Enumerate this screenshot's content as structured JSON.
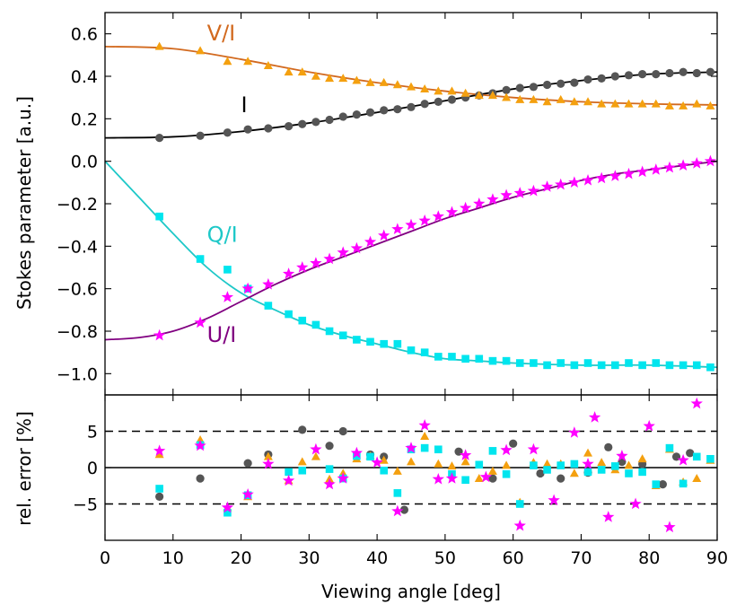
{
  "chart_data": [
    {
      "type": "scatter",
      "panel": "top",
      "title": "",
      "xlabel": "Viewing angle [deg]",
      "ylabel": "Stokes parameter [a.u.]",
      "xlim": [
        0,
        90
      ],
      "ylim": [
        -1.1,
        0.7
      ],
      "xticks": [
        0,
        10,
        20,
        30,
        40,
        50,
        60,
        70,
        80,
        90
      ],
      "yticks": [
        0.6,
        0.4,
        0.2,
        0.0,
        -0.2,
        -0.4,
        -0.6,
        -0.8,
        -1.0
      ],
      "ytick_labels": [
        "0.6",
        "0.4",
        "0.2",
        "0.0",
        "−0.2",
        "−0.4",
        "−0.6",
        "−0.8",
        "−1.0"
      ],
      "series": [
        {
          "name": "I",
          "label": "I",
          "color": "#000000",
          "marker_color": "#555555",
          "marker": "circle",
          "label_at": [
            20,
            0.23
          ],
          "curve": {
            "x": [
              0,
              10,
              20,
              30,
              40,
              50,
              60,
              70,
              80,
              90
            ],
            "y": [
              0.11,
              0.115,
              0.14,
              0.18,
              0.23,
              0.285,
              0.34,
              0.38,
              0.41,
              0.42
            ]
          },
          "x": [
            8,
            14,
            18,
            21,
            24,
            27,
            29,
            31,
            33,
            35,
            37,
            39,
            41,
            43,
            45,
            47,
            49,
            51,
            53,
            55,
            57,
            59,
            61,
            63,
            65,
            67,
            69,
            71,
            73,
            75,
            77,
            79,
            81,
            83,
            85,
            87,
            89
          ],
          "y": [
            0.11,
            0.12,
            0.135,
            0.15,
            0.155,
            0.165,
            0.175,
            0.185,
            0.195,
            0.21,
            0.22,
            0.23,
            0.24,
            0.245,
            0.255,
            0.27,
            0.28,
            0.29,
            0.3,
            0.31,
            0.32,
            0.335,
            0.345,
            0.35,
            0.36,
            0.365,
            0.37,
            0.385,
            0.39,
            0.4,
            0.405,
            0.41,
            0.41,
            0.415,
            0.42,
            0.415,
            0.42
          ]
        },
        {
          "name": "V/I",
          "label": "V/I",
          "color": "#d2691e",
          "marker_color": "#f4a00f",
          "marker": "triangle",
          "label_at": [
            15,
            0.57
          ],
          "curve": {
            "x": [
              0,
              10,
              20,
              30,
              40,
              50,
              60,
              70,
              80,
              90
            ],
            "y": [
              0.54,
              0.53,
              0.48,
              0.42,
              0.37,
              0.33,
              0.3,
              0.28,
              0.27,
              0.265
            ]
          },
          "x": [
            8,
            14,
            18,
            21,
            24,
            27,
            29,
            31,
            33,
            35,
            37,
            39,
            41,
            43,
            45,
            47,
            49,
            51,
            53,
            55,
            57,
            59,
            61,
            63,
            65,
            67,
            69,
            71,
            73,
            75,
            77,
            79,
            81,
            83,
            85,
            87,
            89
          ],
          "y": [
            0.54,
            0.52,
            0.47,
            0.47,
            0.45,
            0.42,
            0.42,
            0.4,
            0.39,
            0.39,
            0.38,
            0.37,
            0.37,
            0.36,
            0.35,
            0.34,
            0.33,
            0.33,
            0.32,
            0.31,
            0.31,
            0.3,
            0.29,
            0.29,
            0.28,
            0.29,
            0.28,
            0.28,
            0.27,
            0.27,
            0.27,
            0.27,
            0.27,
            0.26,
            0.26,
            0.27,
            0.26
          ]
        },
        {
          "name": "Q/I",
          "label": "Q/I",
          "color": "#1ec8c8",
          "marker_color": "#00e5ee",
          "marker": "square",
          "label_at": [
            15,
            -0.38
          ],
          "curve": {
            "x": [
              0,
              5,
              10,
              15,
              20,
              25,
              30,
              35,
              40,
              45,
              50,
              55,
              60,
              70,
              80,
              90
            ],
            "y": [
              0.0,
              -0.17,
              -0.34,
              -0.5,
              -0.62,
              -0.7,
              -0.77,
              -0.82,
              -0.86,
              -0.9,
              -0.93,
              -0.94,
              -0.95,
              -0.96,
              -0.96,
              -0.97
            ]
          },
          "x": [
            8,
            14,
            18,
            21,
            24,
            27,
            29,
            31,
            33,
            35,
            37,
            39,
            41,
            43,
            45,
            47,
            49,
            51,
            53,
            55,
            57,
            59,
            61,
            63,
            65,
            67,
            69,
            71,
            73,
            75,
            77,
            79,
            81,
            83,
            85,
            87,
            89
          ],
          "y": [
            -0.26,
            -0.46,
            -0.51,
            -0.6,
            -0.68,
            -0.72,
            -0.75,
            -0.77,
            -0.8,
            -0.82,
            -0.84,
            -0.85,
            -0.86,
            -0.86,
            -0.89,
            -0.9,
            -0.92,
            -0.92,
            -0.93,
            -0.93,
            -0.94,
            -0.94,
            -0.95,
            -0.95,
            -0.96,
            -0.95,
            -0.96,
            -0.95,
            -0.96,
            -0.96,
            -0.95,
            -0.96,
            -0.95,
            -0.96,
            -0.96,
            -0.96,
            -0.97
          ]
        },
        {
          "name": "U/I",
          "label": "U/I",
          "color": "#800080",
          "marker_color": "#ff00ff",
          "marker": "star",
          "label_at": [
            15,
            -0.85
          ],
          "curve": {
            "x": [
              0,
              5,
              10,
              15,
              20,
              25,
              30,
              35,
              40,
              45,
              50,
              55,
              60,
              65,
              70,
              75,
              80,
              85,
              90
            ],
            "y": [
              -0.84,
              -0.83,
              -0.8,
              -0.74,
              -0.66,
              -0.58,
              -0.51,
              -0.45,
              -0.39,
              -0.33,
              -0.27,
              -0.22,
              -0.17,
              -0.13,
              -0.09,
              -0.06,
              -0.04,
              -0.02,
              0.0
            ]
          },
          "x": [
            8,
            14,
            18,
            21,
            24,
            27,
            29,
            31,
            33,
            35,
            37,
            39,
            41,
            43,
            45,
            47,
            49,
            51,
            53,
            55,
            57,
            59,
            61,
            63,
            65,
            67,
            69,
            71,
            73,
            75,
            77,
            79,
            81,
            83,
            85,
            87,
            89
          ],
          "y": [
            -0.82,
            -0.76,
            -0.64,
            -0.6,
            -0.58,
            -0.53,
            -0.5,
            -0.48,
            -0.46,
            -0.43,
            -0.41,
            -0.38,
            -0.35,
            -0.32,
            -0.3,
            -0.28,
            -0.26,
            -0.24,
            -0.22,
            -0.2,
            -0.18,
            -0.16,
            -0.15,
            -0.14,
            -0.12,
            -0.11,
            -0.1,
            -0.09,
            -0.08,
            -0.07,
            -0.06,
            -0.05,
            -0.04,
            -0.03,
            -0.02,
            -0.01,
            0.0
          ]
        }
      ]
    },
    {
      "type": "scatter",
      "panel": "bottom",
      "xlabel": "Viewing angle [deg]",
      "ylabel": "rel. error [%]",
      "xlim": [
        0,
        90
      ],
      "ylim": [
        -10,
        10
      ],
      "xticks": [
        0,
        10,
        20,
        30,
        40,
        50,
        60,
        70,
        80,
        90
      ],
      "yticks": [
        5,
        0,
        -5
      ],
      "ytick_labels": [
        "5",
        "0",
        "−5"
      ],
      "reference_lines": [
        {
          "y": 5,
          "style": "dashed"
        },
        {
          "y": 0,
          "style": "solid"
        },
        {
          "y": -5,
          "style": "dashed"
        }
      ],
      "series": [
        {
          "name": "I",
          "color": "#555555",
          "marker": "circle",
          "x": [
            8,
            14,
            21,
            24,
            29,
            33,
            35,
            39,
            41,
            44,
            52,
            57,
            60,
            64,
            67,
            71,
            74,
            76,
            79,
            82,
            84,
            86
          ],
          "y": [
            -4.0,
            -1.5,
            0.6,
            1.8,
            5.2,
            3.0,
            5.0,
            1.8,
            1.5,
            -5.8,
            2.2,
            -1.5,
            3.3,
            -0.8,
            -1.5,
            -0.7,
            2.8,
            0.8,
            0.5,
            -2.3,
            1.5,
            2.0
          ]
        },
        {
          "name": "V/I",
          "color": "#f4a00f",
          "marker": "triangle",
          "x": [
            8,
            14,
            18,
            21,
            24,
            27,
            29,
            31,
            33,
            35,
            37,
            39,
            41,
            43,
            45,
            47,
            49,
            51,
            53,
            55,
            57,
            59,
            61,
            63,
            65,
            67,
            69,
            71,
            73,
            75,
            77,
            79,
            81,
            83,
            85,
            87,
            89
          ],
          "y": [
            1.8,
            3.8,
            -5.5,
            -4.0,
            1.5,
            -1.8,
            0.8,
            1.5,
            -1.6,
            -0.8,
            1.2,
            1.6,
            1.0,
            -0.5,
            0.8,
            4.3,
            0.5,
            0.2,
            0.8,
            -1.5,
            -0.5,
            0.3,
            -4.8,
            0.7,
            0.5,
            0.5,
            -0.8,
            2.0,
            0.7,
            -0.3,
            0.3,
            1.2,
            -2.5,
            2.5,
            -2.0,
            -1.5,
            1.0
          ]
        },
        {
          "name": "Q/I",
          "color": "#00e5ee",
          "marker": "square",
          "x": [
            8,
            14,
            18,
            21,
            27,
            29,
            33,
            35,
            37,
            39,
            41,
            43,
            45,
            47,
            49,
            51,
            53,
            55,
            57,
            59,
            61,
            63,
            65,
            67,
            69,
            71,
            73,
            75,
            77,
            79,
            81,
            83,
            85,
            87,
            89
          ],
          "y": [
            -2.9,
            3.1,
            -6.2,
            -3.8,
            -0.6,
            -0.4,
            -0.2,
            -1.5,
            1.6,
            1.5,
            -0.4,
            -3.5,
            2.5,
            2.7,
            2.5,
            -0.9,
            -1.7,
            0.4,
            2.3,
            -0.9,
            -5.0,
            0.3,
            -0.3,
            0.3,
            0.5,
            -0.6,
            -0.3,
            0.2,
            -0.8,
            -0.6,
            -2.3,
            2.7,
            -2.2,
            1.5,
            1.2
          ]
        },
        {
          "name": "U/I",
          "color": "#ff00ff",
          "marker": "star",
          "x": [
            8,
            14,
            18,
            21,
            24,
            27,
            31,
            33,
            35,
            37,
            40,
            43,
            45,
            47,
            49,
            51,
            53,
            56,
            59,
            61,
            63,
            66,
            69,
            71,
            72,
            74,
            76,
            78,
            80,
            83,
            85,
            87
          ],
          "y": [
            2.3,
            3.0,
            -5.5,
            -3.7,
            0.5,
            -1.8,
            2.5,
            -2.3,
            -1.5,
            2.0,
            0.7,
            -6.0,
            2.7,
            5.8,
            -1.6,
            -1.5,
            1.7,
            -1.3,
            2.4,
            -8.0,
            2.5,
            -4.5,
            4.8,
            0.5,
            6.9,
            -6.8,
            1.6,
            -5.0,
            5.7,
            -8.2,
            1.0,
            8.8
          ]
        }
      ]
    }
  ]
}
